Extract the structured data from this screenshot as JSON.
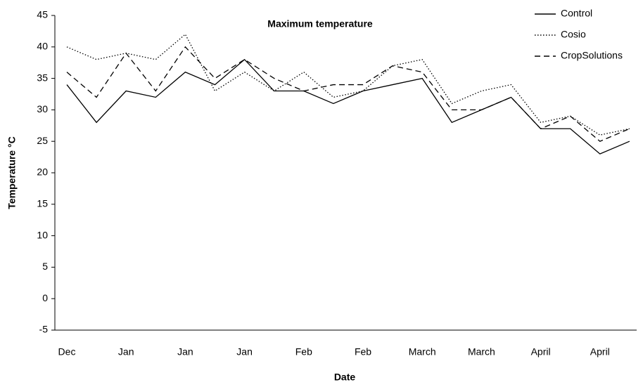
{
  "chart_data": {
    "type": "line",
    "title": "Maximum temperature",
    "x_label": "Date",
    "y_label": "Temperature °C",
    "categories": [
      "Dec",
      null,
      "Jan",
      null,
      "Jan",
      null,
      "Jan",
      null,
      "Feb",
      null,
      "Feb",
      null,
      "March",
      null,
      "March",
      null,
      "April",
      null,
      "April",
      null
    ],
    "series": [
      {
        "name": "Control",
        "color": "#000000",
        "dash": "solid",
        "values": [
          34,
          28,
          33,
          32,
          36,
          34,
          38,
          33,
          33,
          31,
          33,
          34,
          35,
          28,
          30,
          32,
          27,
          27,
          23,
          25
        ]
      },
      {
        "name": "Cosio",
        "color": "#000000",
        "dash": "dotted",
        "values": [
          40,
          38,
          39,
          38,
          42,
          33,
          36,
          33,
          36,
          32,
          33,
          37,
          38,
          31,
          33,
          34,
          28,
          29,
          26,
          27
        ]
      },
      {
        "name": "CropSolutions",
        "color": "#000000",
        "dash": "dashed",
        "values": [
          36,
          32,
          39,
          33,
          40,
          35,
          38,
          35,
          33,
          34,
          34,
          37,
          36,
          30,
          30,
          32,
          27,
          29,
          25,
          27
        ]
      }
    ],
    "ylim": [
      -5,
      45
    ],
    "yticks": [
      -5,
      0,
      5,
      10,
      15,
      20,
      25,
      30,
      35,
      40,
      45
    ],
    "grid": false,
    "legend": "top-right"
  }
}
